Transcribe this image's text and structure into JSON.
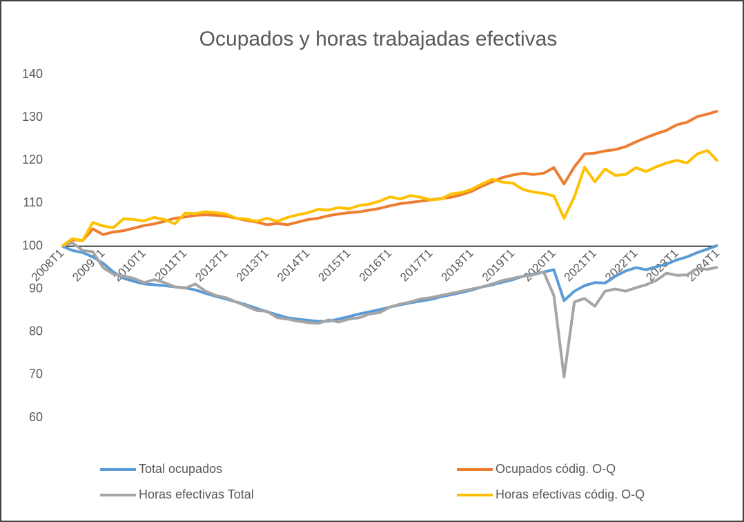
{
  "chart_data": {
    "type": "line",
    "title": "Ocupados y horas trabajadas efectivas",
    "categories": [
      "2008T1",
      null,
      null,
      null,
      "2009T1",
      null,
      null,
      null,
      "2010T1",
      null,
      null,
      null,
      "2011T1",
      null,
      null,
      null,
      "2012T1",
      null,
      null,
      null,
      "2013T1",
      null,
      null,
      null,
      "2014T1",
      null,
      null,
      null,
      "2015T1",
      null,
      null,
      null,
      "2016T1",
      null,
      null,
      null,
      "2017T1",
      null,
      null,
      null,
      "2018T1",
      null,
      null,
      null,
      "2019T1",
      null,
      null,
      null,
      "2020T1",
      null,
      null,
      null,
      "2021T1",
      null,
      null,
      null,
      "2022T1",
      null,
      null,
      null,
      "2023T1",
      null,
      null,
      null,
      "2024T1"
    ],
    "series": [
      {
        "name": "Total ocupados",
        "color": "#5b9bd5",
        "values": [
          100,
          99,
          98.5,
          97.5,
          96,
          94,
          92.5,
          91.8,
          91.2,
          91,
          90.8,
          90.5,
          90.3,
          89.8,
          89,
          88.3,
          87.7,
          87,
          86.3,
          85.5,
          84.7,
          84,
          83.3,
          83,
          82.7,
          82.5,
          82.5,
          83,
          83.6,
          84.2,
          84.7,
          85.2,
          85.8,
          86.3,
          86.8,
          87.2,
          87.6,
          88.2,
          88.7,
          89.2,
          89.8,
          90.5,
          91,
          91.6,
          92.2,
          93,
          93.5,
          94,
          94.5,
          87.3,
          89.5,
          90.8,
          91.5,
          91.4,
          93,
          94.2,
          95,
          94.5,
          95.2,
          95.8,
          96.8,
          97.5,
          98.5,
          99.3,
          100.2
        ]
      },
      {
        "name": "Ocupados códig. O-Q",
        "color": "#ed7d31",
        "values": [
          100,
          101.5,
          101.3,
          104,
          102.7,
          103.3,
          103.6,
          104.2,
          104.8,
          105.2,
          105.8,
          106.5,
          106.8,
          107.2,
          107.3,
          107.2,
          107,
          106.5,
          106,
          105.6,
          105,
          105.3,
          105,
          105.6,
          106.2,
          106.5,
          107.1,
          107.5,
          107.8,
          108,
          108.4,
          108.8,
          109.4,
          109.9,
          110.2,
          110.5,
          110.8,
          111.1,
          111.4,
          112,
          112.8,
          114,
          115,
          116,
          116.6,
          117,
          116.7,
          117,
          118.3,
          114.5,
          118.5,
          121.5,
          121.7,
          122.2,
          122.5,
          123.2,
          124.3,
          125.3,
          126.2,
          127,
          128.3,
          128.9,
          130.2,
          130.8,
          131.5
        ]
      },
      {
        "name": "Horas efectivas  Total",
        "color": "#a5a5a5",
        "values": [
          100,
          100.8,
          99,
          98.7,
          95,
          93.5,
          93,
          92.5,
          91.5,
          92.2,
          91.5,
          90.5,
          90.2,
          91.2,
          89.5,
          88.5,
          88,
          87,
          86,
          85,
          84.8,
          83.3,
          83,
          82.5,
          82.2,
          82,
          82.8,
          82.3,
          83,
          83.3,
          84.2,
          84.5,
          85.8,
          86.5,
          87,
          87.7,
          88,
          88.5,
          89,
          89.5,
          90,
          90.5,
          91.2,
          92,
          92.5,
          93,
          93.3,
          94,
          88.5,
          69.5,
          87,
          87.8,
          86,
          89.5,
          90,
          89.5,
          90.3,
          91,
          92,
          93.7,
          93.2,
          93.3,
          94.8,
          94.6,
          95.1
        ]
      },
      {
        "name": "Horas efectivas códig. O-Q",
        "color": "#ffc000",
        "values": [
          100,
          101.7,
          101.3,
          105.5,
          104.7,
          104.3,
          106.4,
          106.2,
          105.9,
          106.7,
          106.2,
          105.2,
          107.7,
          107.6,
          108,
          107.8,
          107.5,
          106.5,
          106.3,
          105.8,
          106.5,
          105.8,
          106.7,
          107.3,
          107.8,
          108.6,
          108.4,
          109,
          108.7,
          109.5,
          109.8,
          110.5,
          111.5,
          111,
          111.8,
          111.4,
          110.8,
          111,
          112.2,
          112.5,
          113.3,
          114.5,
          115.6,
          114.9,
          114.7,
          113.2,
          112.6,
          112.3,
          111.7,
          106.5,
          111.5,
          118.4,
          115,
          118,
          116.5,
          116.7,
          118.3,
          117.4,
          118.5,
          119.4,
          120,
          119.4,
          121.5,
          122.3,
          119.8
        ]
      }
    ],
    "ylim": [
      60,
      140
    ],
    "yticks": [
      60,
      70,
      80,
      90,
      100,
      110,
      120,
      130,
      140
    ],
    "x_axis_at": 100,
    "grid": false,
    "legend": "bottom"
  }
}
